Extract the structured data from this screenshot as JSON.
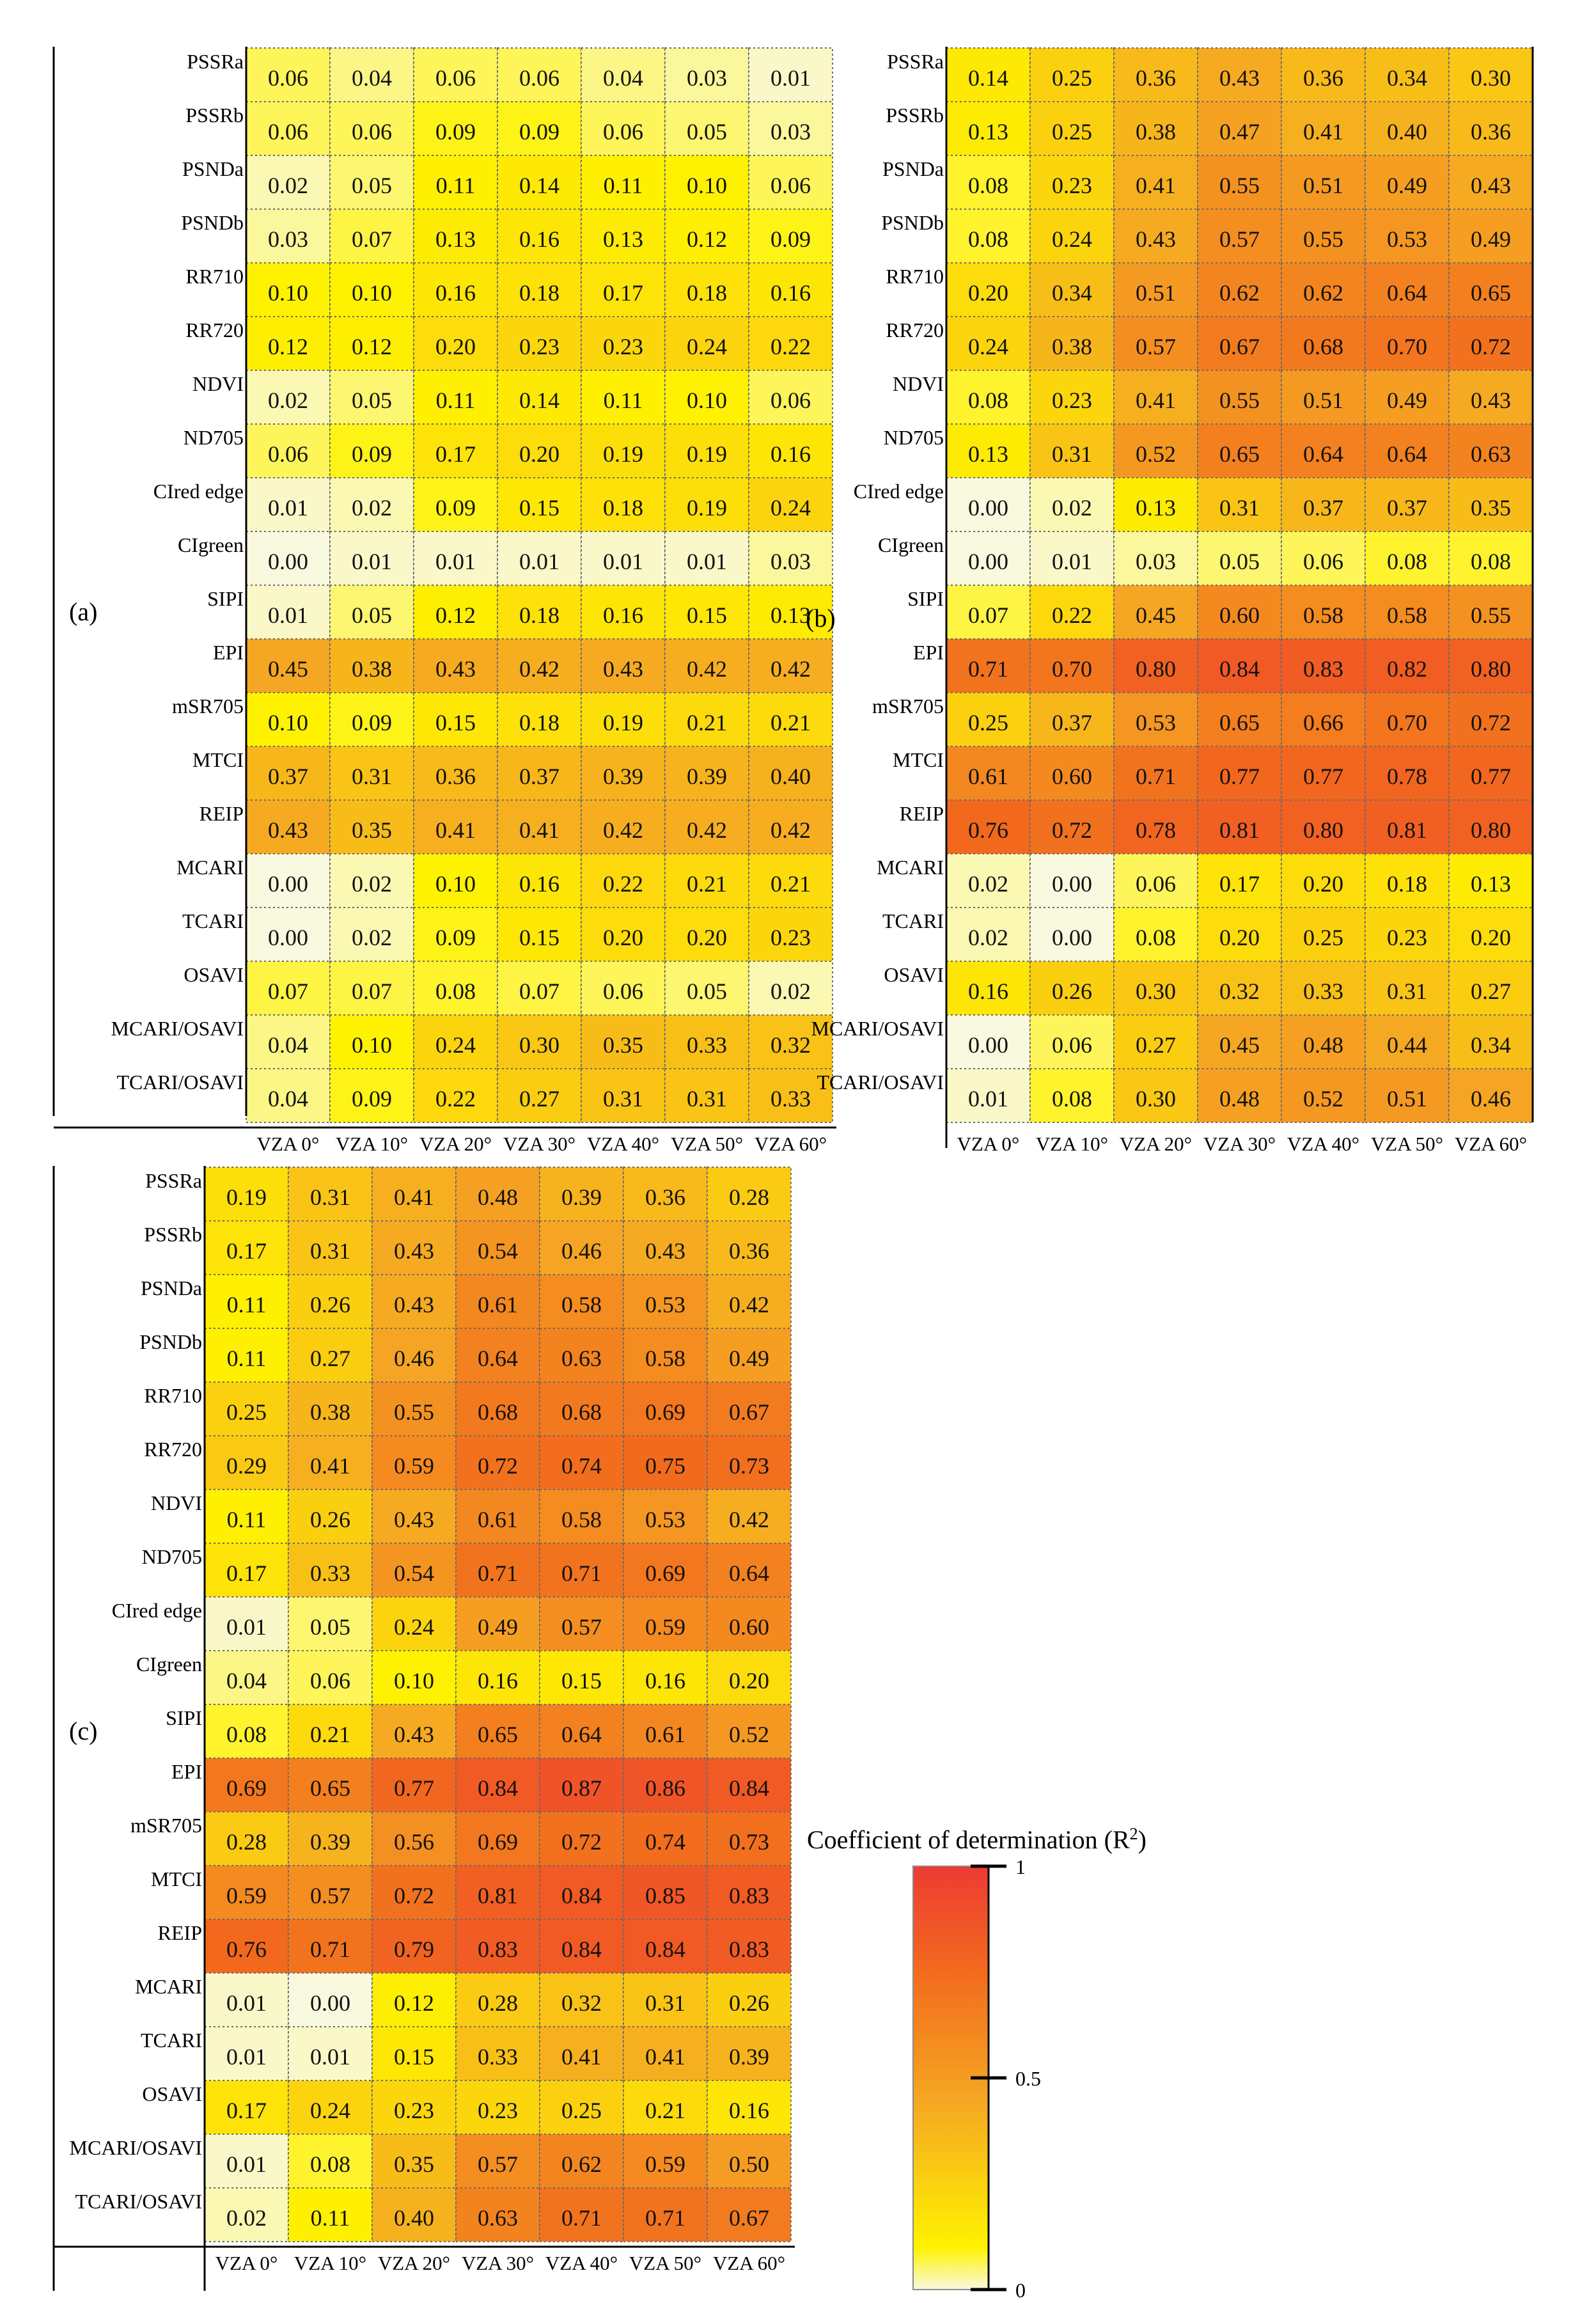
{
  "chart_data": [
    {
      "type": "heatmap",
      "panel_label": "(a)",
      "rows": [
        "PSSRa",
        "PSSRb",
        "PSNDa",
        "PSNDb",
        "RR710",
        "RR720",
        "NDVI",
        "ND705",
        "CIred edge",
        "CIgreen",
        "SIPI",
        "EPI",
        "mSR705",
        "MTCI",
        "REIP",
        "MCARI",
        "TCARI",
        "OSAVI",
        "MCARI/OSAVI",
        "TCARI/OSAVI"
      ],
      "columns": [
        "VZA 0°",
        "VZA 10°",
        "VZA 20°",
        "VZA 30°",
        "VZA 40°",
        "VZA 50°",
        "VZA 60°"
      ],
      "values": [
        [
          "0.06",
          "0.04",
          "0.06",
          "0.06",
          "0.04",
          "0.03",
          "0.01"
        ],
        [
          "0.06",
          "0.06",
          "0.09",
          "0.09",
          "0.06",
          "0.05",
          "0.03"
        ],
        [
          "0.02",
          "0.05",
          "0.11",
          "0.14",
          "0.11",
          "0.10",
          "0.06"
        ],
        [
          "0.03",
          "0.07",
          "0.13",
          "0.16",
          "0.13",
          "0.12",
          "0.09"
        ],
        [
          "0.10",
          "0.10",
          "0.16",
          "0.18",
          "0.17",
          "0.18",
          "0.16"
        ],
        [
          "0.12",
          "0.12",
          "0.20",
          "0.23",
          "0.23",
          "0.24",
          "0.22"
        ],
        [
          "0.02",
          "0.05",
          "0.11",
          "0.14",
          "0.11",
          "0.10",
          "0.06"
        ],
        [
          "0.06",
          "0.09",
          "0.17",
          "0.20",
          "0.19",
          "0.19",
          "0.16"
        ],
        [
          "0.01",
          "0.02",
          "0.09",
          "0.15",
          "0.18",
          "0.19",
          "0.24"
        ],
        [
          "0.00",
          "0.01",
          "0.01",
          "0.01",
          "0.01",
          "0.01",
          "0.03"
        ],
        [
          "0.01",
          "0.05",
          "0.12",
          "0.18",
          "0.16",
          "0.15",
          "0.13"
        ],
        [
          "0.45",
          "0.38",
          "0.43",
          "0.42",
          "0.43",
          "0.42",
          "0.42"
        ],
        [
          "0.10",
          "0.09",
          "0.15",
          "0.18",
          "0.19",
          "0.21",
          "0.21"
        ],
        [
          "0.37",
          "0.31",
          "0.36",
          "0.37",
          "0.39",
          "0.39",
          "0.40"
        ],
        [
          "0.43",
          "0.35",
          "0.41",
          "0.41",
          "0.42",
          "0.42",
          "0.42"
        ],
        [
          "0.00",
          "0.02",
          "0.10",
          "0.16",
          "0.22",
          "0.21",
          "0.21"
        ],
        [
          "0.00",
          "0.02",
          "0.09",
          "0.15",
          "0.20",
          "0.20",
          "0.23"
        ],
        [
          "0.07",
          "0.07",
          "0.08",
          "0.07",
          "0.06",
          "0.05",
          "0.02"
        ],
        [
          "0.04",
          "0.10",
          "0.24",
          "0.30",
          "0.35",
          "0.33",
          "0.32"
        ],
        [
          "0.04",
          "0.09",
          "0.22",
          "0.27",
          "0.31",
          "0.31",
          "0.33"
        ]
      ]
    },
    {
      "type": "heatmap",
      "panel_label": "(b)",
      "rows": [
        "PSSRa",
        "PSSRb",
        "PSNDa",
        "PSNDb",
        "RR710",
        "RR720",
        "NDVI",
        "ND705",
        "CIred edge",
        "CIgreen",
        "SIPI",
        "EPI",
        "mSR705",
        "MTCI",
        "REIP",
        "MCARI",
        "TCARI",
        "OSAVI",
        "MCARI/OSAVI",
        "TCARI/OSAVI"
      ],
      "columns": [
        "VZA 0°",
        "VZA 10°",
        "VZA 20°",
        "VZA 30°",
        "VZA 40°",
        "VZA 50°",
        "VZA 60°"
      ],
      "values": [
        [
          "0.14",
          "0.25",
          "0.36",
          "0.43",
          "0.36",
          "0.34",
          "0.30"
        ],
        [
          "0.13",
          "0.25",
          "0.38",
          "0.47",
          "0.41",
          "0.40",
          "0.36"
        ],
        [
          "0.08",
          "0.23",
          "0.41",
          "0.55",
          "0.51",
          "0.49",
          "0.43"
        ],
        [
          "0.08",
          "0.24",
          "0.43",
          "0.57",
          "0.55",
          "0.53",
          "0.49"
        ],
        [
          "0.20",
          "0.34",
          "0.51",
          "0.62",
          "0.62",
          "0.64",
          "0.65"
        ],
        [
          "0.24",
          "0.38",
          "0.57",
          "0.67",
          "0.68",
          "0.70",
          "0.72"
        ],
        [
          "0.08",
          "0.23",
          "0.41",
          "0.55",
          "0.51",
          "0.49",
          "0.43"
        ],
        [
          "0.13",
          "0.31",
          "0.52",
          "0.65",
          "0.64",
          "0.64",
          "0.63"
        ],
        [
          "0.00",
          "0.02",
          "0.13",
          "0.31",
          "0.37",
          "0.37",
          "0.35"
        ],
        [
          "0.00",
          "0.01",
          "0.03",
          "0.05",
          "0.06",
          "0.08",
          "0.08"
        ],
        [
          "0.07",
          "0.22",
          "0.45",
          "0.60",
          "0.58",
          "0.58",
          "0.55"
        ],
        [
          "0.71",
          "0.70",
          "0.80",
          "0.84",
          "0.83",
          "0.82",
          "0.80"
        ],
        [
          "0.25",
          "0.37",
          "0.53",
          "0.65",
          "0.66",
          "0.70",
          "0.72"
        ],
        [
          "0.61",
          "0.60",
          "0.71",
          "0.77",
          "0.77",
          "0.78",
          "0.77"
        ],
        [
          "0.76",
          "0.72",
          "0.78",
          "0.81",
          "0.80",
          "0.81",
          "0.80"
        ],
        [
          "0.02",
          "0.00",
          "0.06",
          "0.17",
          "0.20",
          "0.18",
          "0.13"
        ],
        [
          "0.02",
          "0.00",
          "0.08",
          "0.20",
          "0.25",
          "0.23",
          "0.20"
        ],
        [
          "0.16",
          "0.26",
          "0.30",
          "0.32",
          "0.33",
          "0.31",
          "0.27"
        ],
        [
          "0.00",
          "0.06",
          "0.27",
          "0.45",
          "0.48",
          "0.44",
          "0.34"
        ],
        [
          "0.01",
          "0.08",
          "0.30",
          "0.48",
          "0.52",
          "0.51",
          "0.46"
        ]
      ]
    },
    {
      "type": "heatmap",
      "panel_label": "(c)",
      "rows": [
        "PSSRa",
        "PSSRb",
        "PSNDa",
        "PSNDb",
        "RR710",
        "RR720",
        "NDVI",
        "ND705",
        "CIred edge",
        "CIgreen",
        "SIPI",
        "EPI",
        "mSR705",
        "MTCI",
        "REIP",
        "MCARI",
        "TCARI",
        "OSAVI",
        "MCARI/OSAVI",
        "TCARI/OSAVI"
      ],
      "columns": [
        "VZA 0°",
        "VZA 10°",
        "VZA 20°",
        "VZA 30°",
        "VZA 40°",
        "VZA 50°",
        "VZA 60°"
      ],
      "values": [
        [
          "0.19",
          "0.31",
          "0.41",
          "0.48",
          "0.39",
          "0.36",
          "0.28"
        ],
        [
          "0.17",
          "0.31",
          "0.43",
          "0.54",
          "0.46",
          "0.43",
          "0.36"
        ],
        [
          "0.11",
          "0.26",
          "0.43",
          "0.61",
          "0.58",
          "0.53",
          "0.42"
        ],
        [
          "0.11",
          "0.27",
          "0.46",
          "0.64",
          "0.63",
          "0.58",
          "0.49"
        ],
        [
          "0.25",
          "0.38",
          "0.55",
          "0.68",
          "0.68",
          "0.69",
          "0.67"
        ],
        [
          "0.29",
          "0.41",
          "0.59",
          "0.72",
          "0.74",
          "0.75",
          "0.73"
        ],
        [
          "0.11",
          "0.26",
          "0.43",
          "0.61",
          "0.58",
          "0.53",
          "0.42"
        ],
        [
          "0.17",
          "0.33",
          "0.54",
          "0.71",
          "0.71",
          "0.69",
          "0.64"
        ],
        [
          "0.01",
          "0.05",
          "0.24",
          "0.49",
          "0.57",
          "0.59",
          "0.60"
        ],
        [
          "0.04",
          "0.06",
          "0.10",
          "0.16",
          "0.15",
          "0.16",
          "0.20"
        ],
        [
          "0.08",
          "0.21",
          "0.43",
          "0.65",
          "0.64",
          "0.61",
          "0.52"
        ],
        [
          "0.69",
          "0.65",
          "0.77",
          "0.84",
          "0.87",
          "0.86",
          "0.84"
        ],
        [
          "0.28",
          "0.39",
          "0.56",
          "0.69",
          "0.72",
          "0.74",
          "0.73"
        ],
        [
          "0.59",
          "0.57",
          "0.72",
          "0.81",
          "0.84",
          "0.85",
          "0.83"
        ],
        [
          "0.76",
          "0.71",
          "0.79",
          "0.83",
          "0.84",
          "0.84",
          "0.83"
        ],
        [
          "0.01",
          "0.00",
          "0.12",
          "0.28",
          "0.32",
          "0.31",
          "0.26"
        ],
        [
          "0.01",
          "0.01",
          "0.15",
          "0.33",
          "0.41",
          "0.41",
          "0.39"
        ],
        [
          "0.17",
          "0.24",
          "0.23",
          "0.23",
          "0.25",
          "0.21",
          "0.16"
        ],
        [
          "0.01",
          "0.08",
          "0.35",
          "0.57",
          "0.62",
          "0.59",
          "0.50"
        ],
        [
          "0.02",
          "0.11",
          "0.40",
          "0.63",
          "0.71",
          "0.71",
          "0.67"
        ]
      ]
    }
  ],
  "colorbar": {
    "title_prefix": "Coefficient of determination (R",
    "title_sup": "2",
    "title_suffix": ")",
    "ticks": [
      "1",
      "0.5",
      "0"
    ],
    "tick_values": [
      1,
      0.5,
      0
    ],
    "range": [
      0,
      1
    ],
    "stops": [
      "#f9f9df",
      "#fff200",
      "#f5a623",
      "#f26b1d",
      "#ee3a34"
    ]
  }
}
